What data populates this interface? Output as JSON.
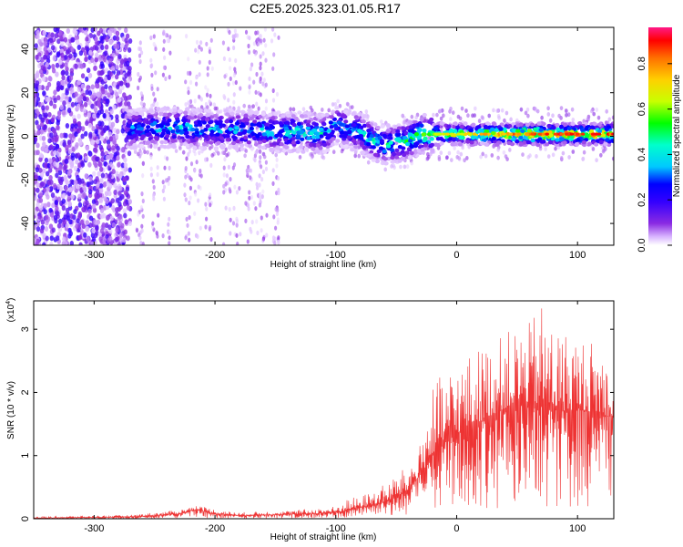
{
  "title": "C2E5.2025.323.01.05.R17",
  "chart_data": [
    {
      "type": "heatmap",
      "xlabel": "Height of straight line (km)",
      "ylabel": "Frequency (Hz)",
      "xlim": [
        -350,
        130
      ],
      "ylim": [
        -50,
        50
      ],
      "xticks": [
        -300,
        -200,
        -100,
        0,
        100
      ],
      "xtick_labels": [
        "-300",
        "-200",
        "-100",
        "0",
        "100"
      ],
      "yticks": [
        -40,
        -20,
        0,
        20,
        40
      ],
      "ytick_labels": [
        "-40",
        "-20",
        "0",
        "20",
        "40"
      ],
      "colorbar": {
        "label": "Normalized spectral amplitude",
        "range": [
          0,
          0.96
        ],
        "ticks": [
          0.0,
          0.2,
          0.4,
          0.6,
          0.8
        ],
        "tick_labels": [
          "0.0",
          "0.2",
          "0.4",
          "0.6",
          "0.8"
        ],
        "colormap": [
          "#ffffff",
          "#d8b4ff",
          "#8a2be2",
          "#3300ff",
          "#0000ff",
          "#00c8ff",
          "#00ffcc",
          "#00ff00",
          "#c8ff00",
          "#ffd000",
          "#ff7000",
          "#ff0000",
          "#ff1a88"
        ]
      },
      "signal_track": {
        "x": [
          -270,
          -250,
          -230,
          -210,
          -190,
          -170,
          -150,
          -130,
          -110,
          -100,
          -90,
          -80,
          -70,
          -60,
          -50,
          -40,
          -30,
          -20,
          0,
          20,
          40,
          60,
          80,
          100,
          120,
          130
        ],
        "center_freq_hz": [
          3,
          4,
          4,
          3,
          3,
          3,
          2,
          2,
          1,
          5,
          3,
          2,
          -2,
          -4,
          -3,
          -2,
          1,
          1,
          1,
          1,
          1,
          1,
          1,
          1,
          1,
          1
        ],
        "peak_amplitude": [
          0.45,
          0.45,
          0.5,
          0.45,
          0.45,
          0.45,
          0.5,
          0.5,
          0.5,
          0.45,
          0.45,
          0.5,
          0.5,
          0.5,
          0.5,
          0.55,
          0.6,
          0.65,
          0.7,
          0.75,
          0.8,
          0.85,
          0.85,
          0.85,
          0.85,
          0.85
        ]
      }
    },
    {
      "type": "line",
      "xlabel": "Height of straight line (km)",
      "ylabel": "SNR (10 * v/v)",
      "scale_label": "(x10",
      "scale_exponent": "4",
      "scale_close": ")",
      "xlim": [
        -350,
        130
      ],
      "ylim": [
        0,
        3.45
      ],
      "xticks": [
        -300,
        -200,
        -100,
        0,
        100
      ],
      "xtick_labels": [
        "-300",
        "-200",
        "-100",
        "0",
        "100"
      ],
      "yticks": [
        0,
        1,
        2,
        3
      ],
      "ytick_labels": [
        "0",
        "1",
        "2",
        "3"
      ],
      "color": "#ee3333",
      "series": [
        {
          "name": "SNR",
          "x": [
            -350,
            -300,
            -270,
            -250,
            -230,
            -215,
            -200,
            -180,
            -160,
            -140,
            -120,
            -100,
            -90,
            -80,
            -70,
            -60,
            -50,
            -40,
            -30,
            -20,
            -10,
            0,
            10,
            20,
            30,
            40,
            50,
            60,
            70,
            80,
            90,
            100,
            110,
            120,
            130
          ],
          "mean": [
            0.01,
            0.02,
            0.03,
            0.05,
            0.08,
            0.15,
            0.08,
            0.05,
            0.06,
            0.07,
            0.08,
            0.1,
            0.14,
            0.18,
            0.22,
            0.26,
            0.35,
            0.45,
            0.7,
            1.0,
            1.2,
            1.35,
            1.45,
            1.55,
            1.65,
            1.75,
            1.8,
            1.85,
            1.8,
            1.75,
            1.7,
            1.75,
            1.7,
            1.65,
            1.6
          ],
          "peak": [
            0.03,
            0.05,
            0.06,
            0.1,
            0.14,
            0.22,
            0.15,
            0.1,
            0.12,
            0.13,
            0.16,
            0.2,
            0.33,
            0.35,
            0.45,
            0.55,
            0.7,
            0.85,
            1.2,
            2.15,
            2.3,
            2.5,
            2.6,
            2.75,
            2.8,
            2.95,
            3.05,
            3.1,
            3.45,
            3.1,
            3.0,
            2.9,
            2.85,
            2.8,
            2.4
          ]
        }
      ]
    }
  ]
}
